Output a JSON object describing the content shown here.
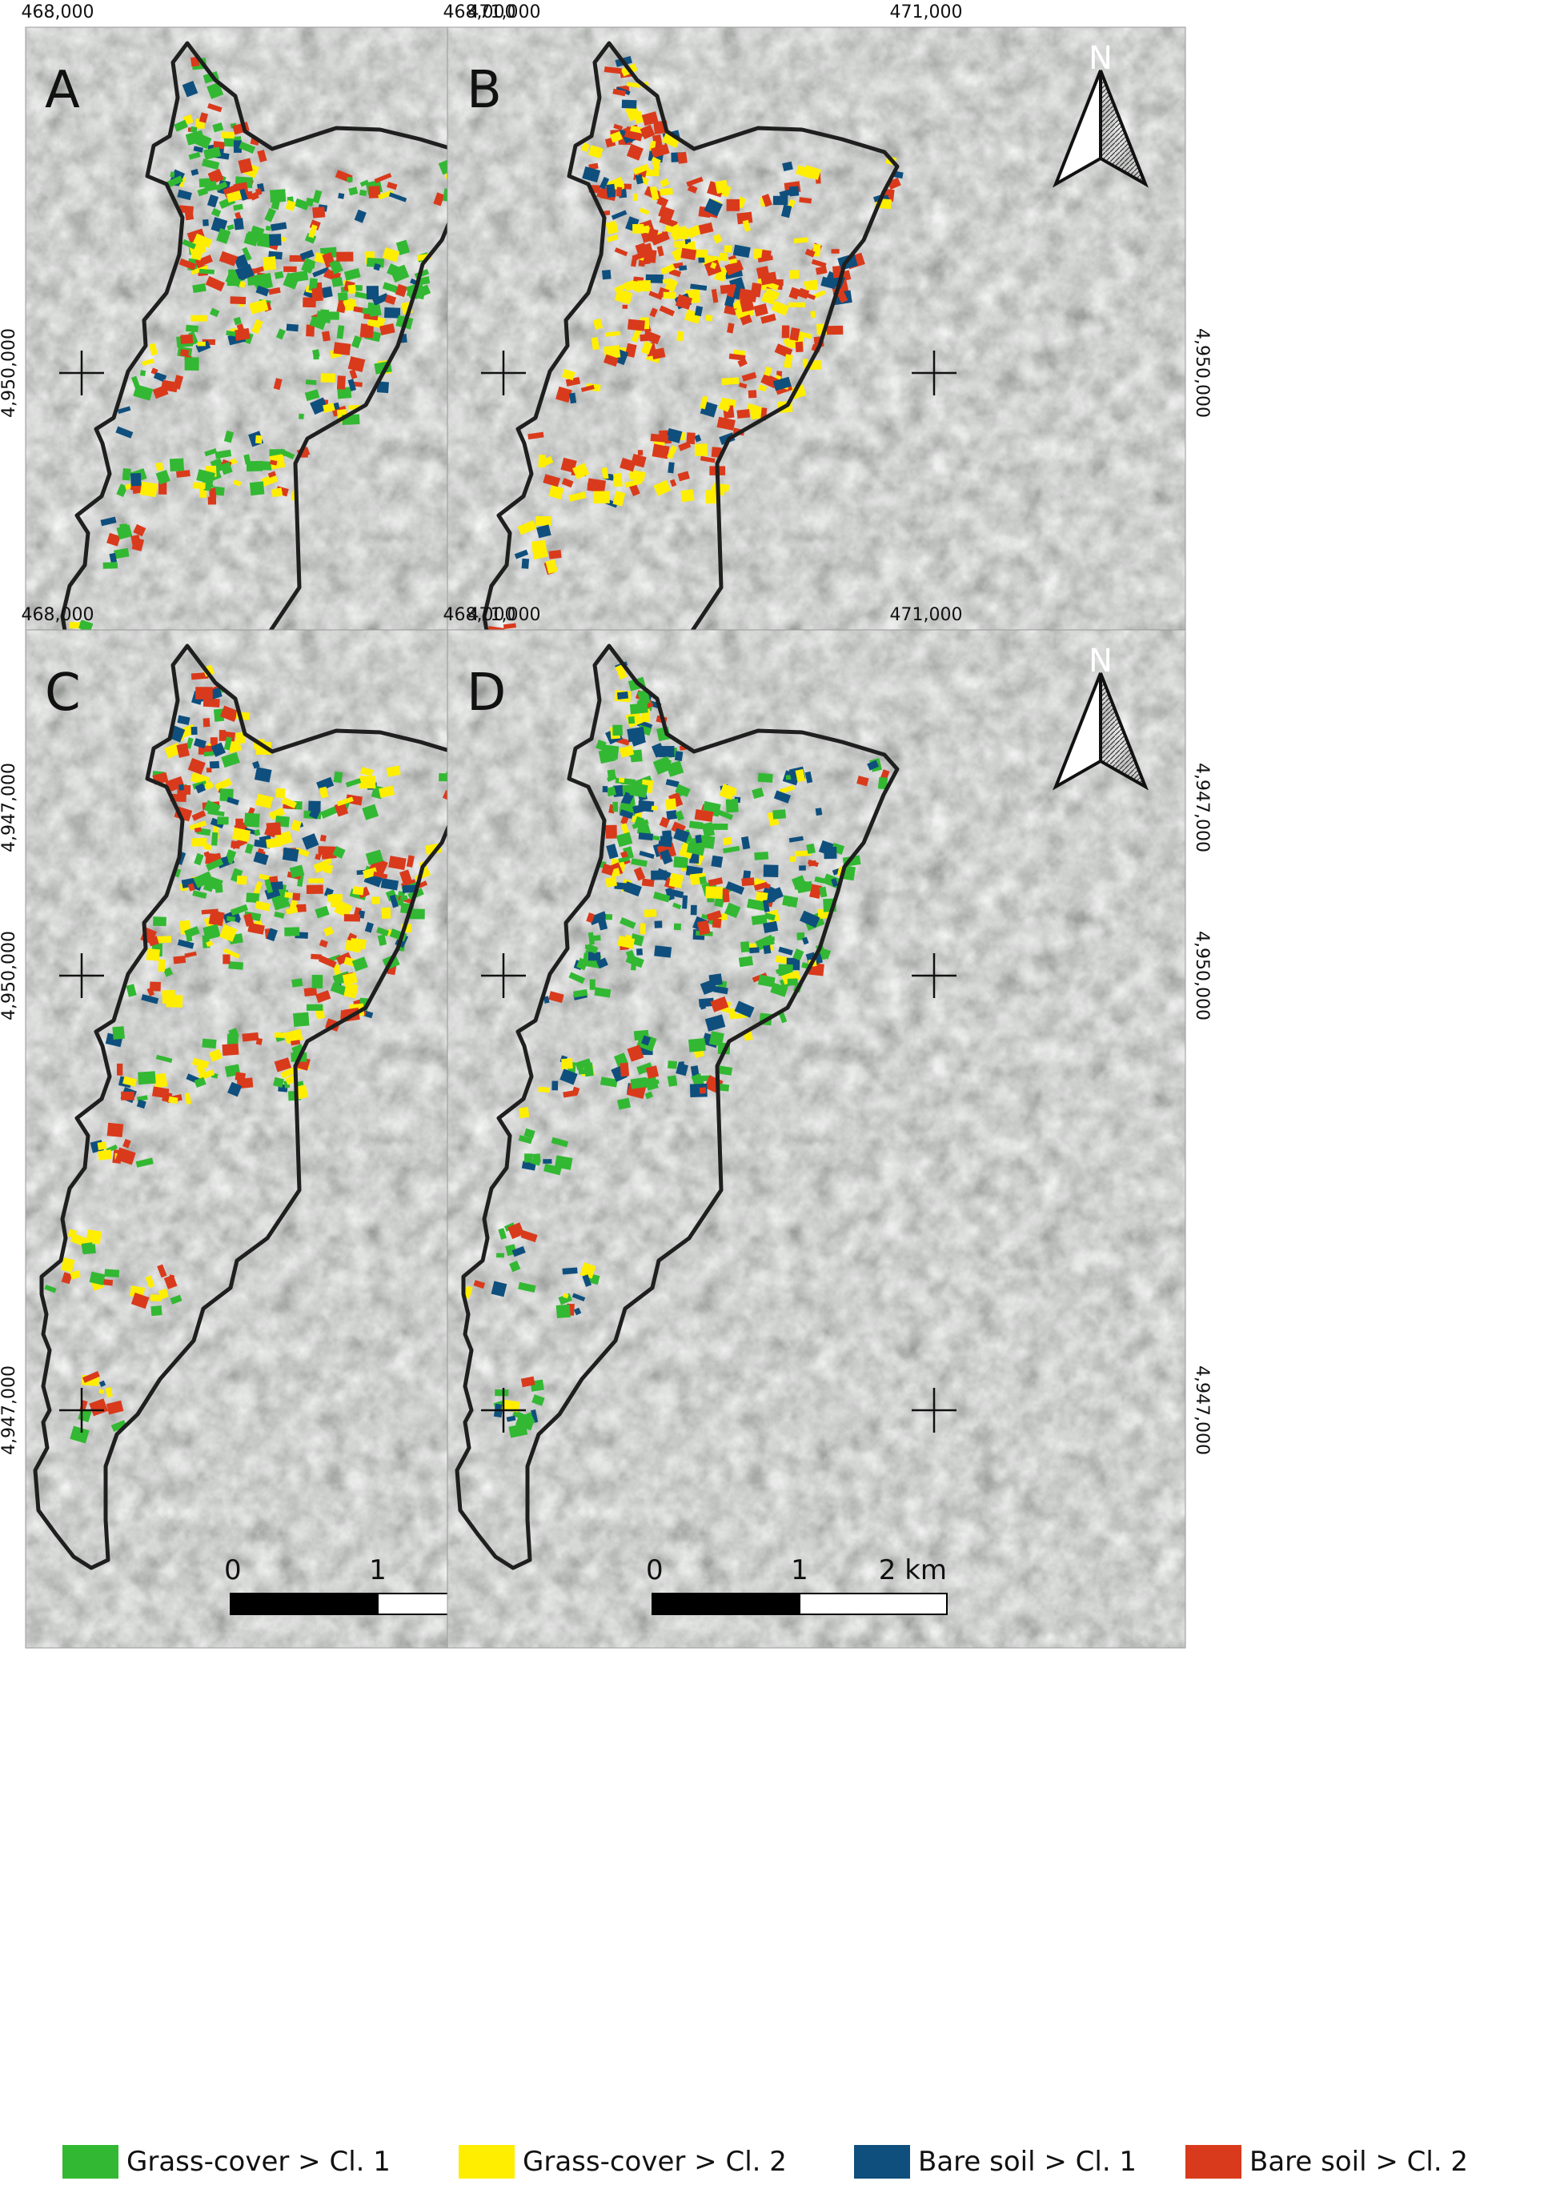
{
  "panels": [
    {
      "letter": "A",
      "x_labels": [
        "468,000",
        "471,000"
      ],
      "y_labels": [
        "4,950,000",
        "4,947,000"
      ],
      "y_side": "left",
      "palette": [
        "#33b833",
        "#33b833",
        "#33b833",
        "#d93a1c",
        "#d93a1c",
        "#0f4f7d",
        "#ffee00"
      ]
    },
    {
      "letter": "B",
      "x_labels": [
        "468,000",
        "471,000"
      ],
      "y_labels": [
        "4,950,000",
        "4,947,000"
      ],
      "y_side": "right",
      "palette": [
        "#ffee00",
        "#ffee00",
        "#ffee00",
        "#d93a1c",
        "#d93a1c",
        "#d93a1c",
        "#0f4f7d"
      ]
    },
    {
      "letter": "C",
      "x_labels": [
        "468,000",
        "471,000"
      ],
      "y_labels": [
        "4,950,000",
        "4,947,000"
      ],
      "y_side": "left",
      "palette": [
        "#33b833",
        "#33b833",
        "#ffee00",
        "#d93a1c",
        "#d93a1c",
        "#0f4f7d",
        "#ffee00"
      ]
    },
    {
      "letter": "D",
      "x_labels": [
        "468,000",
        "471,000"
      ],
      "y_labels": [
        "4,950,000",
        "4,947,000"
      ],
      "y_side": "right",
      "palette": [
        "#33b833",
        "#33b833",
        "#33b833",
        "#0f4f7d",
        "#0f4f7d",
        "#d93a1c",
        "#ffee00"
      ]
    }
  ],
  "north_label": "N",
  "scalebar": {
    "ticks": [
      "0",
      "1",
      "2 km"
    ]
  },
  "legend": [
    {
      "label": "Grass-cover > Cl. 1",
      "color": "#33b833"
    },
    {
      "label": "Grass-cover > Cl. 2",
      "color": "#ffee00"
    },
    {
      "label": "Bare soil > Cl. 1",
      "color": "#0f4f7d"
    },
    {
      "label": "Bare soil > Cl. 2",
      "color": "#d93a1c"
    }
  ],
  "colors": {
    "imagery_base": "#8f9290",
    "boundary": "#1f1f1f"
  }
}
